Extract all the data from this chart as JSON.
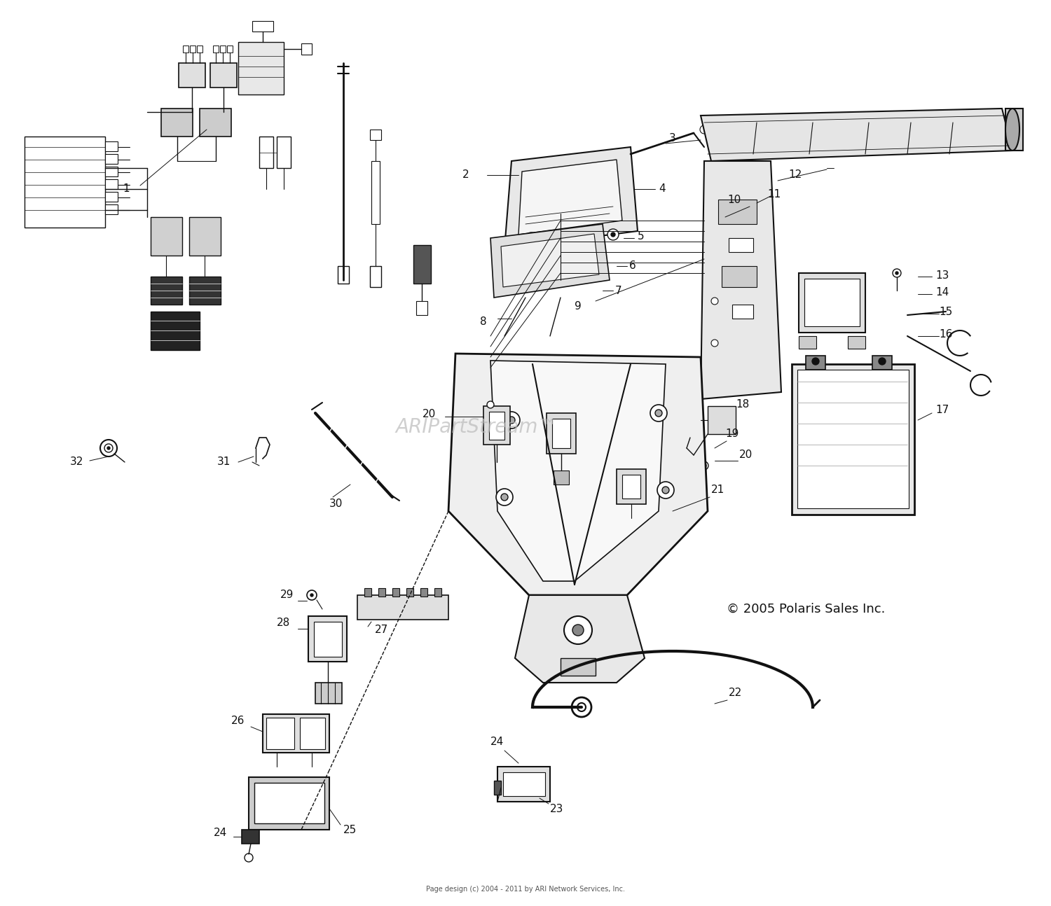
{
  "background_color": "#ffffff",
  "line_color": "#1a1a1a",
  "dark_color": "#111111",
  "watermark": "ARIPartStream™",
  "copyright": "© 2005 Polaris Sales Inc.",
  "footer": "Page design (c) 2004 - 2011 by ARI Network Services, Inc.",
  "fig_width": 15.0,
  "fig_height": 12.94,
  "dpi": 100
}
